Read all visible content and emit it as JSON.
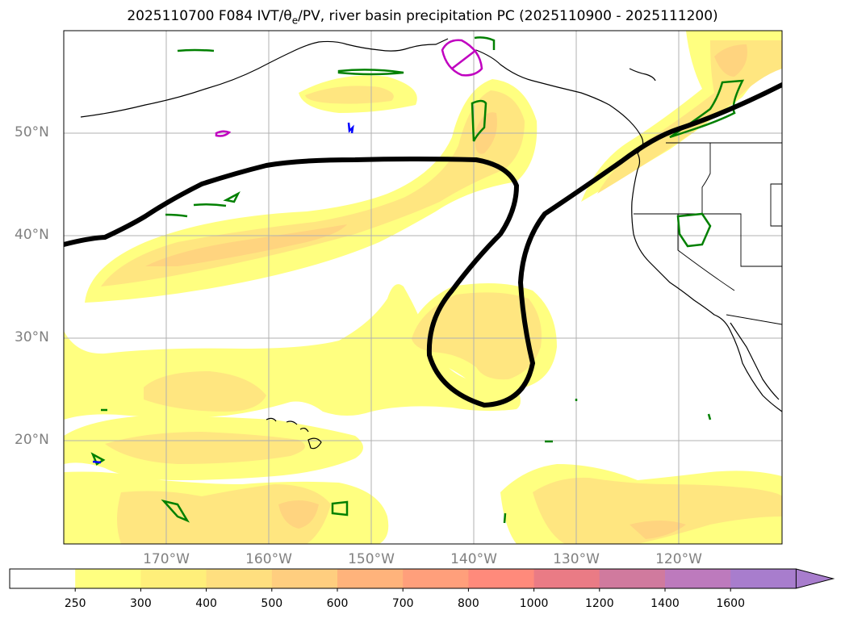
{
  "title_parts": {
    "prefix": "2025110700 F084 IVT/θ",
    "subscript": "e",
    "suffix": "/PV, river basin precipitation PC (2025110900 - 2025111200)"
  },
  "lat_labels": [
    "50°N",
    "40°N",
    "30°N",
    "20°N"
  ],
  "lat_values": [
    50,
    40,
    30,
    20
  ],
  "lon_labels": [
    "170°W",
    "160°W",
    "150°W",
    "140°W",
    "130°W",
    "120°W"
  ],
  "lon_values": [
    -170,
    -160,
    -150,
    -140,
    -130,
    -120
  ],
  "map_extent": {
    "lon_min": -180,
    "lon_max": -110,
    "lat_min": 10,
    "lat_max": 60
  },
  "colorbar": {
    "ticks": [
      "250",
      "300",
      "400",
      "500",
      "600",
      "700",
      "800",
      "1000",
      "1200",
      "1400",
      "1600"
    ],
    "colors": [
      "#ffffff",
      "#ffff80",
      "#ffef7a",
      "#ffdf7f",
      "#ffce7f",
      "#ffb37b",
      "#ff9f7b",
      "#ff8a7b",
      "#ea7b85",
      "#d07a9e",
      "#bd7abd",
      "#a87dcd"
    ],
    "extend": "max"
  },
  "colors": {
    "ivt_low": "#ffff80",
    "ivt_mid": "#ffe680",
    "ivt_high": "#ffd47f",
    "pv_contour": "#000000",
    "precip_contour": "#008000",
    "magenta_contour": "#c000c0",
    "blue_contour": "#0000ff",
    "grid": "#b0b0b0",
    "coastline": "#000000"
  }
}
